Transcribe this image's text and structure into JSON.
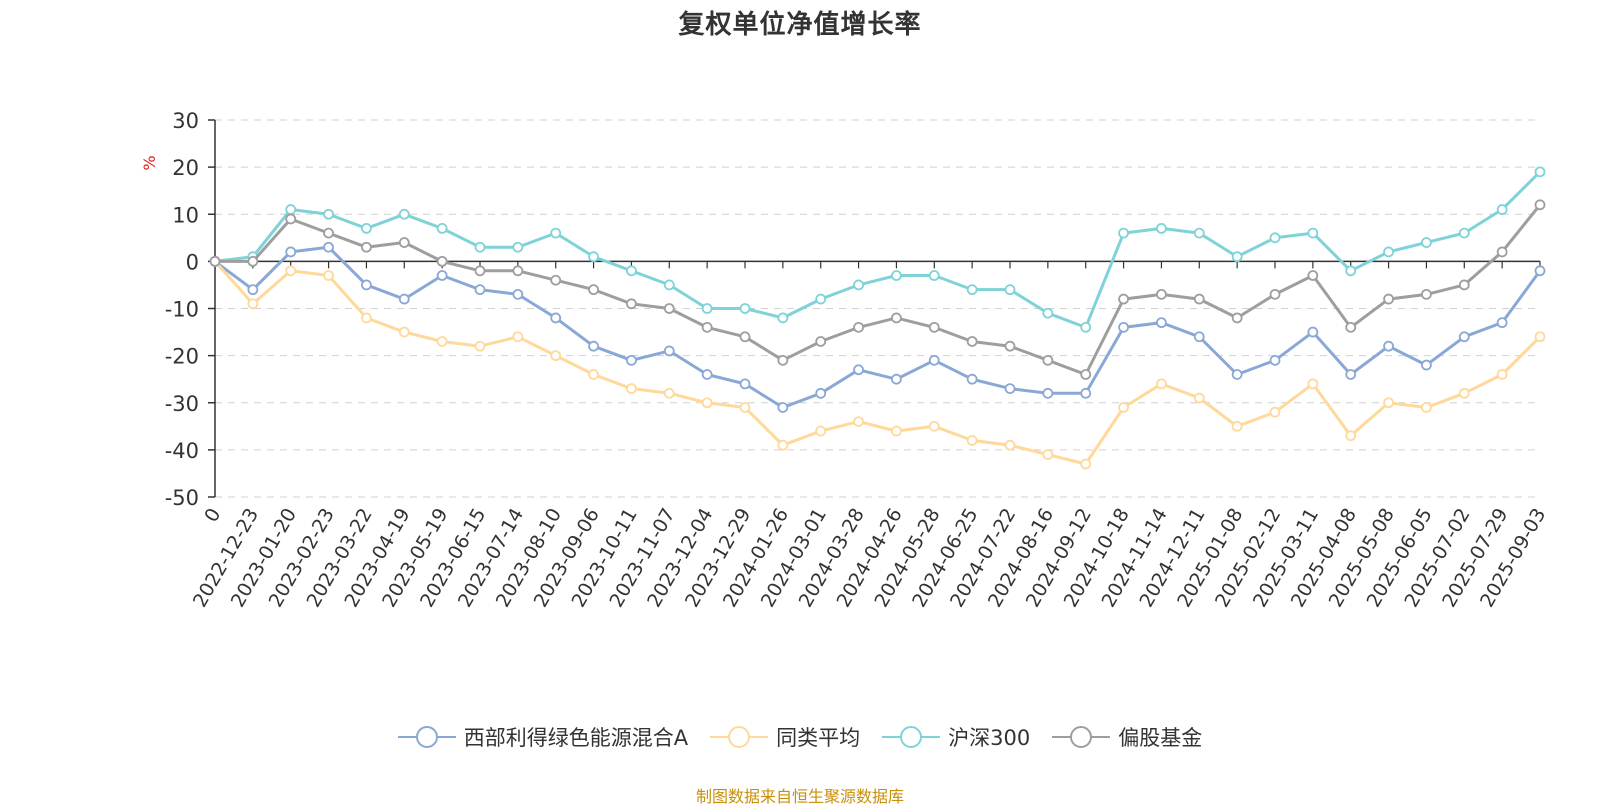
{
  "title": "复权单位净值增长率",
  "source": "制图数据来自恒生聚源数据库",
  "chart_data": {
    "type": "line",
    "title": "复权单位净值增长率",
    "ylabel": "%",
    "ylim": [
      -50,
      30
    ],
    "yticks": [
      30,
      20,
      10,
      0,
      -10,
      -20,
      -30,
      -40,
      -50
    ],
    "grid": true,
    "legend_position": "bottom",
    "x_ticks": [
      "0",
      "2022-12-23",
      "2023-01-20",
      "2023-02-23",
      "2023-03-22",
      "2023-04-19",
      "2023-05-19",
      "2023-06-15",
      "2023-07-14",
      "2023-08-10",
      "2023-09-06",
      "2023-10-11",
      "2023-11-07",
      "2023-12-04",
      "2023-12-29",
      "2024-01-26",
      "2024-03-01",
      "2024-03-28",
      "2024-04-26",
      "2024-05-28",
      "2024-06-25",
      "2024-07-22",
      "2024-08-16",
      "2024-09-12",
      "2024-10-18",
      "2024-11-14",
      "2024-12-11",
      "2025-01-08",
      "2025-02-12",
      "2025-03-11",
      "2025-04-08",
      "2025-05-08",
      "2025-06-05",
      "2025-07-02",
      "2025-07-29",
      "2025-09-03"
    ],
    "series": [
      {
        "name": "西部利得绿色能源混合A",
        "color": "#8aa8d6",
        "values": [
          0,
          -6,
          2,
          3,
          -5,
          -8,
          -3,
          -6,
          -7,
          -12,
          -18,
          -21,
          -19,
          -24,
          -26,
          -31,
          -28,
          -23,
          -25,
          -21,
          -25,
          -27,
          -28,
          -28,
          -14,
          -13,
          -16,
          -24,
          -21,
          -15,
          -24,
          -18,
          -22,
          -16,
          -13,
          -2
        ]
      },
      {
        "name": "同类平均",
        "color": "#ffd89a",
        "values": [
          0,
          -9,
          -2,
          -3,
          -12,
          -15,
          -17,
          -18,
          -16,
          -20,
          -24,
          -27,
          -28,
          -30,
          -31,
          -39,
          -36,
          -34,
          -36,
          -35,
          -38,
          -39,
          -41,
          -43,
          -31,
          -26,
          -29,
          -35,
          -32,
          -26,
          -37,
          -30,
          -31,
          -28,
          -24,
          -16
        ]
      },
      {
        "name": "沪深300",
        "color": "#7fd3d8",
        "values": [
          0,
          1,
          11,
          10,
          7,
          10,
          7,
          3,
          3,
          6,
          1,
          -2,
          -5,
          -10,
          -10,
          -12,
          -8,
          -5,
          -3,
          -3,
          -6,
          -6,
          -11,
          -14,
          6,
          7,
          6,
          1,
          5,
          6,
          -2,
          2,
          4,
          6,
          11,
          19
        ]
      },
      {
        "name": "偏股基金",
        "color": "#9e9e9e",
        "values": [
          0,
          0,
          9,
          6,
          3,
          4,
          0,
          -2,
          -2,
          -4,
          -6,
          -9,
          -10,
          -14,
          -16,
          -21,
          -17,
          -14,
          -12,
          -14,
          -17,
          -18,
          -21,
          -24,
          -8,
          -7,
          -8,
          -12,
          -7,
          -3,
          -14,
          -8,
          -7,
          -5,
          2,
          12
        ]
      }
    ]
  }
}
